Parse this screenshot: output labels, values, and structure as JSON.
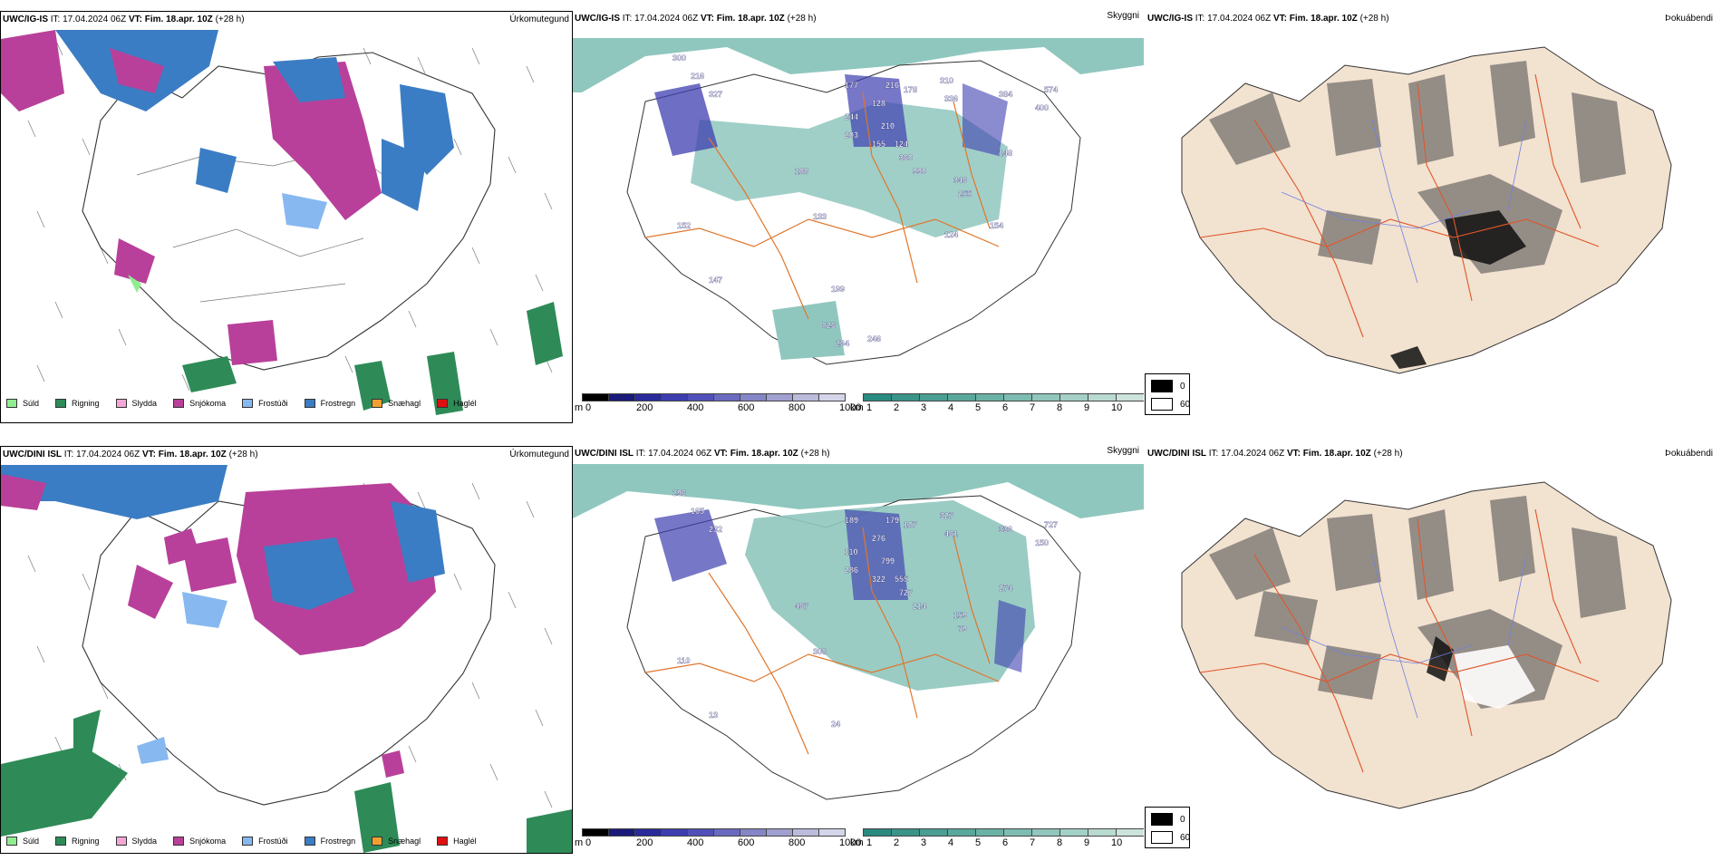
{
  "rows": [
    {
      "model": "UWC/IG-IS",
      "it_label": "IT:",
      "it_value": "17.04.2024 06Z",
      "vt_label": "VT:",
      "vt_value": "Fim. 18.apr. 10Z",
      "lead": "(+28 h)",
      "precip_panel_name": "Úrkomutegund",
      "vis_panel_name": "Skyggni",
      "fog_panel_name": "Þokuábendi",
      "peak_labels": [
        "300",
        "216",
        "327",
        "177",
        "128",
        "244",
        "216",
        "178",
        "310",
        "336",
        "384",
        "574",
        "400",
        "203",
        "155",
        "210",
        "124",
        "360",
        "990",
        "346",
        "255",
        "148",
        "188",
        "133",
        "152",
        "147",
        "199",
        "826",
        "264",
        "246",
        "124",
        "154"
      ]
    },
    {
      "model": "UWC/DINI ISL",
      "it_label": "IT:",
      "it_value": "17.04.2024 06Z",
      "vt_label": "VT:",
      "vt_value": "Fim. 18.apr. 10Z",
      "lead": "(+28 h)",
      "precip_panel_name": "Úrkomutegund",
      "vis_panel_name": "Skyggni",
      "fog_panel_name": "Þokuábendi",
      "peak_labels": [
        "296",
        "165",
        "232",
        "189",
        "276",
        "110",
        "179",
        "187",
        "327",
        "461",
        "336",
        "727",
        "150",
        "286",
        "322",
        "799",
        "555",
        "727",
        "214",
        "159",
        "79",
        "274",
        "467",
        "308",
        "110",
        "13",
        "24"
      ]
    }
  ],
  "precip_legend": [
    {
      "label": "Súld",
      "color": "#90ee90"
    },
    {
      "label": "Rigning",
      "color": "#2e8b57"
    },
    {
      "label": "Slydda",
      "color": "#f4a6d7"
    },
    {
      "label": "Snjókoma",
      "color": "#b8409a"
    },
    {
      "label": "Frostúði",
      "color": "#87b8f0"
    },
    {
      "label": "Frostregn",
      "color": "#3b7dc4"
    },
    {
      "label": "Snæhagl",
      "color": "#f0a030"
    },
    {
      "label": "Haglél",
      "color": "#e01010"
    }
  ],
  "height_bar": {
    "unit": "m",
    "ticks": [
      "0",
      "200",
      "400",
      "600",
      "800",
      "1000"
    ],
    "colors": [
      "#000000",
      "#1a1a7a",
      "#2a2a9a",
      "#3d3db0",
      "#5050b8",
      "#6a6ac0",
      "#8585c8",
      "#a0a0d0",
      "#bbbbdc",
      "#d5d5ea"
    ]
  },
  "vis_bar": {
    "unit": "km",
    "ticks": [
      "1",
      "2",
      "3",
      "4",
      "5",
      "6",
      "7",
      "8",
      "9",
      "10"
    ],
    "colors": [
      "#2a8a80",
      "#3a9488",
      "#4a9e92",
      "#5aa89c",
      "#6bb2a6",
      "#7dbcb0",
      "#90c6bb",
      "#a4d0c6",
      "#b8dad1",
      "#cde4dc"
    ]
  },
  "fog_legend": [
    {
      "label": "0",
      "color": "#000000"
    },
    {
      "label": "60",
      "color": "#ffffff"
    }
  ]
}
